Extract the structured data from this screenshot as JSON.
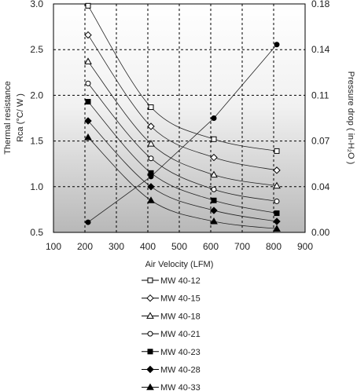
{
  "chart_data": {
    "type": "line",
    "title": "",
    "xlabel": "Air Velocity (LFM)",
    "ylabel_left": [
      "Thermal resistance",
      "Rca (°C/ W )"
    ],
    "ylabel_right": "Pressure drop ( in-H₂O )",
    "xlim": [
      100,
      900
    ],
    "ylim": [
      0.5,
      3.0
    ],
    "ylim_right": [
      0.0,
      0.18
    ],
    "x_ticks": [
      "100",
      "200",
      "300",
      "400",
      "500",
      "600",
      "700",
      "800",
      "900"
    ],
    "y_ticks": [
      "0.5",
      "1.0",
      "1.5",
      "2.0",
      "2.5",
      "3.0"
    ],
    "y_ticks_right": [
      "0.00",
      "0.04",
      "0.07",
      "0.11",
      "0.14",
      "0.18"
    ],
    "grid": true,
    "background": "gradient white-to-gray",
    "legend_position": "bottom",
    "x": [
      200,
      400,
      600,
      800
    ],
    "series": [
      {
        "name": "MW 40-12",
        "marker": "square-open",
        "values": [
          2.98,
          1.87,
          1.52,
          1.39
        ]
      },
      {
        "name": "MW 40-15",
        "marker": "diamond-open",
        "values": [
          2.66,
          1.66,
          1.32,
          1.18
        ]
      },
      {
        "name": "MW 40-18",
        "marker": "triangle-open",
        "values": [
          2.37,
          1.47,
          1.13,
          1.01
        ]
      },
      {
        "name": "MW 40-21",
        "marker": "circle-open",
        "values": [
          2.13,
          1.31,
          0.97,
          0.84
        ]
      },
      {
        "name": "MW 40-23",
        "marker": "square-filled",
        "values": [
          1.93,
          1.15,
          0.85,
          0.71
        ]
      },
      {
        "name": "MW 40-28",
        "marker": "diamond-filled",
        "values": [
          1.72,
          1.0,
          0.74,
          0.62
        ]
      },
      {
        "name": "MW 40-33",
        "marker": "triangle-filled",
        "values": [
          1.54,
          0.85,
          0.62,
          0.54
        ]
      }
    ],
    "pressure_series": {
      "axis": "right",
      "marker": "circle-filled",
      "x": [
        200,
        400,
        600,
        800
      ],
      "values": [
        0.008,
        0.044,
        0.09,
        0.148
      ]
    }
  }
}
